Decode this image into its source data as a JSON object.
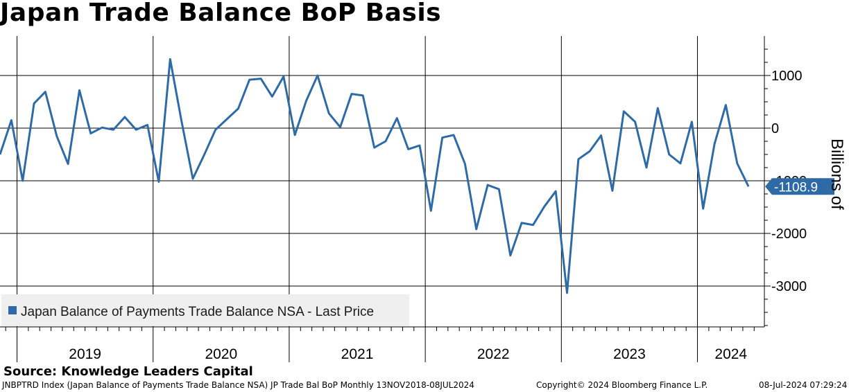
{
  "title": "Japan Trade Balance BoP Basis",
  "source": "Source: Knowledge Leaders Capital",
  "footer": {
    "description": "JNBPTRD Index (Japan Balance of Payments Trade Balance NSA) JP Trade Bal BoP  Monthly 13NOV2018-08JUL2024",
    "copyright": "Copyright© 2024 Bloomberg Finance L.P.",
    "timestamp": "08-Jul-2024 07:29:24"
  },
  "colors": {
    "line": "#2e6aa6",
    "legend_bg": "#efefef",
    "label_bg": "#2e6aa6"
  },
  "chart_data": {
    "type": "line",
    "title": "Japan Trade Balance BoP Basis",
    "ylabel": "Billions of",
    "xlabel": "",
    "ylim": [
      -3850,
      1750
    ],
    "yticks": [
      1000,
      0,
      -1000,
      -2000,
      -3000
    ],
    "ytick_labels": [
      "1000",
      "0",
      "-1000",
      "-2000",
      "-3000"
    ],
    "year_labels": [
      "2019",
      "2020",
      "2021",
      "2022",
      "2023",
      "2024"
    ],
    "legend": "Japan Balance of Payments Trade Balance NSA - Last Price",
    "last_value_label": "-1108.9",
    "series": [
      {
        "name": "Japan Balance of Payments Trade Balance NSA - Last Price",
        "start": "2018-11",
        "values": [
          -500,
          150,
          -1000,
          470,
          690,
          -150,
          -680,
          720,
          -100,
          10,
          -30,
          210,
          -30,
          60,
          -1020,
          1310,
          140,
          -960,
          -510,
          -30,
          170,
          370,
          920,
          940,
          600,
          980,
          -130,
          520,
          1000,
          280,
          20,
          650,
          620,
          -370,
          -250,
          190,
          -400,
          -330,
          -1570,
          -180,
          -130,
          -680,
          -1920,
          -1080,
          -1160,
          -2420,
          -1800,
          -1840,
          -1490,
          -1200,
          -3130,
          -590,
          -440,
          -140,
          -1190,
          320,
          120,
          -750,
          380,
          -500,
          -670,
          120,
          -1530,
          -300,
          440,
          -670,
          -1108.9
        ]
      }
    ]
  }
}
